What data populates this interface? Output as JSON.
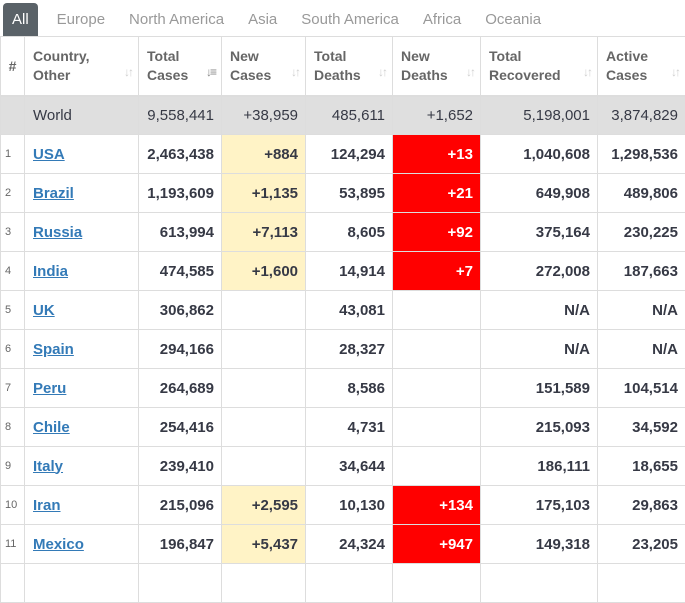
{
  "tabs": [
    "All",
    "Europe",
    "North America",
    "Asia",
    "South America",
    "Africa",
    "Oceania"
  ],
  "active_tab": "All",
  "columns": {
    "num": "#",
    "country": [
      "Country,",
      "Other"
    ],
    "total_cases": [
      "Total",
      "Cases"
    ],
    "new_cases": [
      "New",
      "Cases"
    ],
    "total_deaths": [
      "Total",
      "Deaths"
    ],
    "new_deaths": [
      "New",
      "Deaths"
    ],
    "total_recovered": [
      "Total",
      "Recovered"
    ],
    "active_cases": [
      "Active",
      "Cases"
    ]
  },
  "world": {
    "country": "World",
    "total_cases": "9,558,441",
    "new_cases": "+38,959",
    "total_deaths": "485,611",
    "new_deaths": "+1,652",
    "total_recovered": "5,198,001",
    "active_cases": "3,874,829"
  },
  "rows": [
    {
      "num": "1",
      "country": "USA",
      "total_cases": "2,463,438",
      "new_cases": "+884",
      "total_deaths": "124,294",
      "new_deaths": "+13",
      "total_recovered": "1,040,608",
      "active_cases": "1,298,536"
    },
    {
      "num": "2",
      "country": "Brazil",
      "total_cases": "1,193,609",
      "new_cases": "+1,135",
      "total_deaths": "53,895",
      "new_deaths": "+21",
      "total_recovered": "649,908",
      "active_cases": "489,806"
    },
    {
      "num": "3",
      "country": "Russia",
      "total_cases": "613,994",
      "new_cases": "+7,113",
      "total_deaths": "8,605",
      "new_deaths": "+92",
      "total_recovered": "375,164",
      "active_cases": "230,225"
    },
    {
      "num": "4",
      "country": "India",
      "total_cases": "474,585",
      "new_cases": "+1,600",
      "total_deaths": "14,914",
      "new_deaths": "+7",
      "total_recovered": "272,008",
      "active_cases": "187,663"
    },
    {
      "num": "5",
      "country": "UK",
      "total_cases": "306,862",
      "new_cases": "",
      "total_deaths": "43,081",
      "new_deaths": "",
      "total_recovered": "N/A",
      "active_cases": "N/A"
    },
    {
      "num": "6",
      "country": "Spain",
      "total_cases": "294,166",
      "new_cases": "",
      "total_deaths": "28,327",
      "new_deaths": "",
      "total_recovered": "N/A",
      "active_cases": "N/A"
    },
    {
      "num": "7",
      "country": "Peru",
      "total_cases": "264,689",
      "new_cases": "",
      "total_deaths": "8,586",
      "new_deaths": "",
      "total_recovered": "151,589",
      "active_cases": "104,514"
    },
    {
      "num": "8",
      "country": "Chile",
      "total_cases": "254,416",
      "new_cases": "",
      "total_deaths": "4,731",
      "new_deaths": "",
      "total_recovered": "215,093",
      "active_cases": "34,592"
    },
    {
      "num": "9",
      "country": "Italy",
      "total_cases": "239,410",
      "new_cases": "",
      "total_deaths": "34,644",
      "new_deaths": "",
      "total_recovered": "186,111",
      "active_cases": "18,655"
    },
    {
      "num": "10",
      "country": "Iran",
      "total_cases": "215,096",
      "new_cases": "+2,595",
      "total_deaths": "10,130",
      "new_deaths": "+134",
      "total_recovered": "175,103",
      "active_cases": "29,863"
    },
    {
      "num": "11",
      "country": "Mexico",
      "total_cases": "196,847",
      "new_cases": "+5,437",
      "total_deaths": "24,324",
      "new_deaths": "+947",
      "total_recovered": "149,318",
      "active_cases": "23,205"
    },
    {
      "num": "",
      "country": "",
      "total_cases": "",
      "new_cases": "",
      "total_deaths": "",
      "new_deaths": "",
      "total_recovered": "",
      "active_cases": ""
    }
  ],
  "colors": {
    "new_cases_highlight": "#fff3c6",
    "new_deaths_highlight": "#ff0000",
    "world_row_bg": "#dfdfdf",
    "link": "#337ab7",
    "active_tab_bg": "#5a6268"
  },
  "icons": {
    "sort": "sort-arrows-icon",
    "sort_active": "sort-descending-icon"
  }
}
